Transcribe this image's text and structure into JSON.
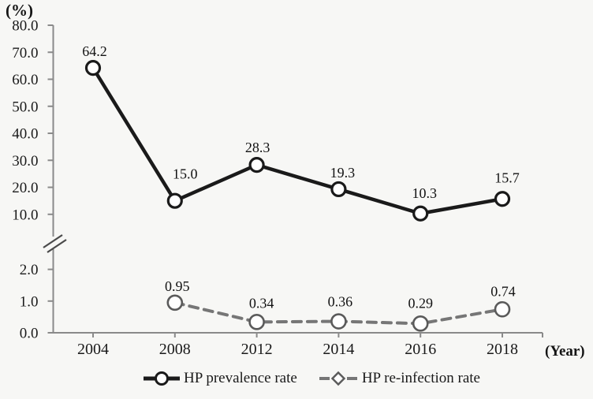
{
  "chart_data": {
    "type": "line",
    "title": "",
    "y_axis_unit": "(%)",
    "x_axis_unit": "(Year)",
    "categories": [
      "2004",
      "2008",
      "2012",
      "2014",
      "2016",
      "2018"
    ],
    "y_axis": {
      "broken": true,
      "upper_segment": {
        "range": [
          10,
          80
        ],
        "ticks": [
          80,
          70,
          60,
          50,
          40,
          30,
          20,
          10
        ],
        "tick_labels": [
          "80.0",
          "70.0",
          "60.0",
          "50.0",
          "40.0",
          "30.0",
          "20.0",
          "10.0"
        ]
      },
      "lower_segment": {
        "range": [
          0,
          2
        ],
        "ticks": [
          2,
          1,
          0
        ],
        "tick_labels": [
          "2.0",
          "1.0",
          "0.0"
        ]
      }
    },
    "series": [
      {
        "name": "HP prevalence rate",
        "line_style": "solid",
        "marker": "circle",
        "legend_marker": "circle",
        "color": "#1a1a1a",
        "values": [
          64.2,
          15.0,
          28.3,
          19.3,
          10.3,
          15.7
        ],
        "point_labels": [
          "64.2",
          "15.0",
          "28.3",
          "19.3",
          "10.3",
          "15.7"
        ]
      },
      {
        "name": "HP re-infection rate",
        "line_style": "dashed",
        "marker": "circle",
        "legend_marker": "diamond",
        "color": "#767676",
        "marker_color": "#5a5a5a",
        "values": [
          null,
          0.95,
          0.34,
          0.36,
          0.29,
          0.74
        ],
        "point_labels": [
          "",
          "0.95",
          "0.34",
          "0.36",
          "0.29",
          "0.74"
        ]
      }
    ],
    "legend_position": "bottom",
    "grid": false,
    "colors": {
      "axis": "#8a8a8a",
      "break_mark": "#4a4a4a",
      "text": "#1a1a1a",
      "background": "#f7f7f5",
      "marker_fill": "#ffffff"
    }
  }
}
